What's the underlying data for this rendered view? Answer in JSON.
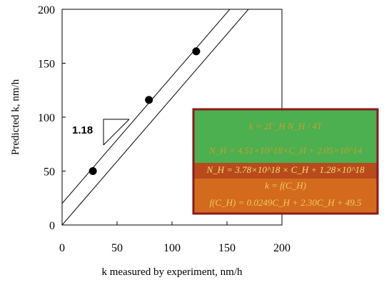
{
  "chart_data": {
    "type": "scatter",
    "xlabel": "k measured by experiment, nm/h",
    "ylabel": "Predicted k, nm/h",
    "xlim": [
      0,
      200
    ],
    "ylim": [
      0,
      200
    ],
    "x_ticks": [
      "0",
      "50",
      "100",
      "150",
      "200"
    ],
    "y_ticks": [
      "0",
      "50",
      "100",
      "150",
      "200"
    ],
    "grid": false,
    "points": [
      {
        "x": 28,
        "y": 50
      },
      {
        "x": 79,
        "y": 116
      },
      {
        "x": 122,
        "y": 161
      }
    ],
    "lines": [
      {
        "intercept": 20,
        "slope": 1.18
      },
      {
        "intercept": 0,
        "slope": 1.18
      }
    ],
    "slope_annotation": "1.18",
    "inset": {
      "colors": {
        "green": "#4caf50",
        "orange": "#d2691e",
        "border": "#8b1a1a",
        "text_gold": "#c8a02a",
        "text_light": "#e8e060"
      },
      "equations": [
        "k = 2Γ_H N_H / 4T",
        "N_H = 4.51×10^18×C_H + 2.05×10^14",
        "N_H = 3.78×10^18 × C_H + 1.28×10^18",
        "k = f(C_H)",
        "f(C_H) = 0.0249C_H + 2.30C_H + 49.5"
      ]
    }
  }
}
